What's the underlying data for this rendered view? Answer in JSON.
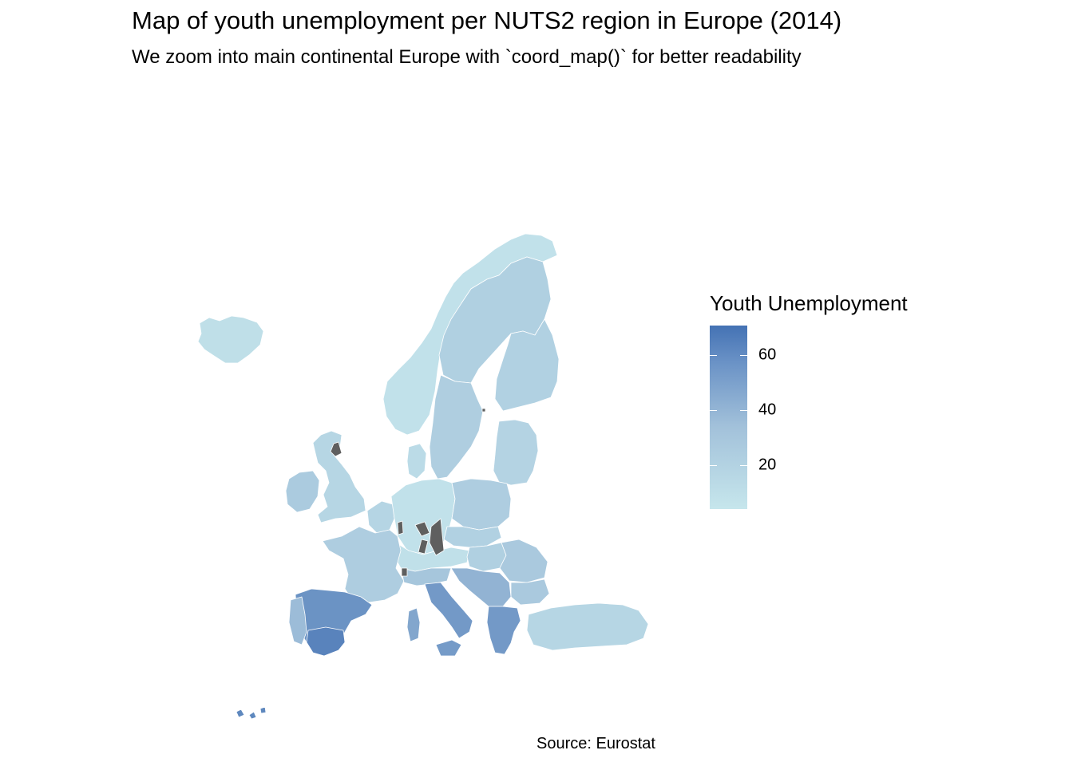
{
  "title": "Map of youth unemployment per NUTS2 region in Europe (2014)",
  "subtitle": "We zoom into main continental Europe with `coord_map()` for better readability",
  "caption": "Source: Eurostat",
  "legend": {
    "title": "Youth Unemployment",
    "ticks": [
      "60",
      "40",
      "20"
    ],
    "range": [
      4,
      70
    ]
  },
  "colors": {
    "low": "#c6e6ec",
    "mid": "#a2c1da",
    "high": "#4472b4",
    "na": "#5f5f5f",
    "border": "#ffffff"
  },
  "chart_data": {
    "type": "choropleth",
    "fill_variable": "Youth Unemployment",
    "scale": "continuous",
    "regions": [
      {
        "area": "Iceland",
        "value": 10
      },
      {
        "area": "Norway",
        "value": 8
      },
      {
        "area": "Northern Scandinavia",
        "value": 22
      },
      {
        "area": "Sweden",
        "value": 23
      },
      {
        "area": "Finland",
        "value": 21
      },
      {
        "area": "Baltic states",
        "value": 19
      },
      {
        "area": "Denmark",
        "value": 13
      },
      {
        "area": "Ireland",
        "value": 26
      },
      {
        "area": "United Kingdom",
        "value": 17
      },
      {
        "area": "Benelux",
        "value": 18
      },
      {
        "area": "Germany",
        "value": 8
      },
      {
        "area": "Poland",
        "value": 24
      },
      {
        "area": "Czech Republic & Slovakia",
        "value": 21
      },
      {
        "area": "Austria & Switzerland",
        "value": 9
      },
      {
        "area": "Hungary",
        "value": 22
      },
      {
        "area": "Romania",
        "value": 27
      },
      {
        "area": "Bulgaria",
        "value": 27
      },
      {
        "area": "France",
        "value": 24
      },
      {
        "area": "Spain",
        "value": 55
      },
      {
        "area": "Southern Spain",
        "value": 62
      },
      {
        "area": "Portugal",
        "value": 36
      },
      {
        "area": "Northern Italy",
        "value": 30
      },
      {
        "area": "Southern Italy",
        "value": 52
      },
      {
        "area": "Sardinia",
        "value": 46
      },
      {
        "area": "Sicily",
        "value": 51
      },
      {
        "area": "Balkans",
        "value": 40
      },
      {
        "area": "Greece",
        "value": 52
      },
      {
        "area": "Turkey",
        "value": 17
      },
      {
        "area": "Canary Islands",
        "value": 60
      },
      {
        "area": "Missing data",
        "value": null
      }
    ]
  }
}
